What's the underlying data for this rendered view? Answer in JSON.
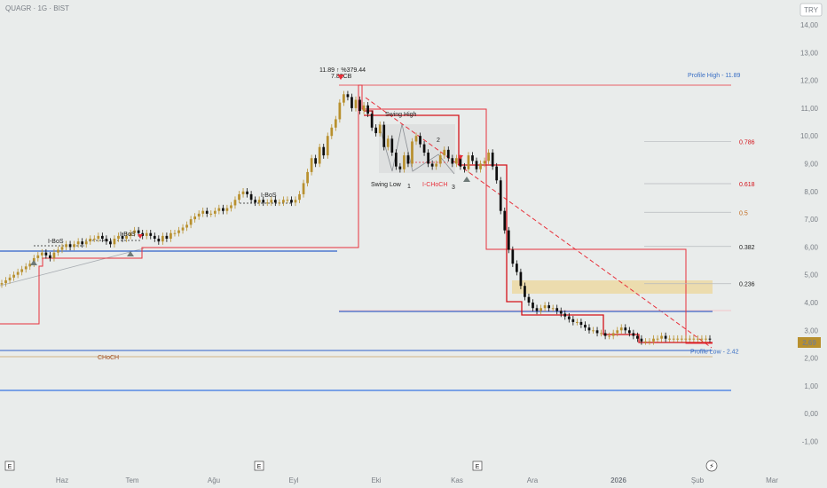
{
  "header": {
    "symbol_label": "QUAGR · 1G · BIST",
    "currency_badge": "TRY"
  },
  "price_badge": "2,69",
  "colors": {
    "background": "#e9eceb",
    "bull_candle": "#b8902e",
    "bear_candle": "#0d0d0d",
    "trend_red": "#e8313b",
    "fib_red": "#d4121a",
    "fib_orange": "#c2691a",
    "blue_level": "#2f61c9",
    "zone_fill": "#ecd9a3"
  },
  "chart_data": {
    "type": "candlestick",
    "y_axis": {
      "ticks": [
        "14,00",
        "13,00",
        "12,00",
        "11,00",
        "10,00",
        "9,00",
        "8,00",
        "7,00",
        "6,00",
        "5,00",
        "4,00",
        "3,00",
        "2,00",
        "1,00",
        "0,00",
        "-1,00"
      ],
      "values": [
        14,
        13,
        12,
        11,
        10,
        9,
        8,
        7,
        6,
        5,
        4,
        3,
        2,
        1,
        0,
        -1
      ],
      "range": [
        -1.4,
        14.4
      ]
    },
    "x_axis": {
      "labels": [
        "Haz",
        "Tem",
        "Ağu",
        "Eyl",
        "Eki",
        "Kas",
        "Ara",
        "2026",
        "Şub",
        "Mar"
      ],
      "bold": "2026"
    },
    "close_series": [
      4.7,
      4.8,
      4.9,
      5.0,
      5.1,
      5.2,
      5.3,
      5.4,
      5.6,
      5.7,
      5.8,
      5.7,
      5.6,
      5.8,
      5.9,
      6.0,
      6.1,
      6.0,
      6.1,
      6.2,
      6.1,
      6.2,
      6.3,
      6.3,
      6.4,
      6.3,
      6.2,
      6.1,
      6.3,
      6.4,
      6.3,
      6.4,
      6.5,
      6.6,
      6.5,
      6.4,
      6.5,
      6.4,
      6.3,
      6.2,
      6.4,
      6.3,
      6.5,
      6.5,
      6.6,
      6.7,
      6.8,
      7.0,
      7.1,
      7.2,
      7.3,
      7.2,
      7.2,
      7.3,
      7.4,
      7.3,
      7.4,
      7.5,
      7.7,
      7.9,
      8.0,
      7.9,
      7.7,
      7.6,
      7.7,
      7.6,
      7.6,
      7.7,
      7.6,
      7.6,
      7.7,
      7.7,
      7.6,
      7.7,
      7.9,
      8.3,
      8.7,
      9.2,
      9.0,
      9.6,
      9.3,
      10.0,
      10.3,
      10.6,
      11.2,
      11.5,
      11.4,
      11.0,
      11.3,
      10.9,
      11.1,
      10.8,
      10.3,
      10.1,
      10.4,
      9.6,
      9.9,
      9.4,
      8.9,
      8.8,
      9.3,
      9.0,
      9.8,
      10.0,
      9.7,
      9.4,
      9.0,
      8.9,
      9.0,
      9.3,
      9.5,
      9.2,
      9.0,
      9.2,
      8.9,
      8.8,
      9.3,
      9.1,
      8.8,
      9.0,
      9.1,
      9.4,
      8.9,
      8.4,
      7.3,
      6.6,
      5.9,
      5.4,
      5.1,
      4.6,
      4.2,
      4.0,
      3.8,
      3.7,
      3.8,
      3.9,
      3.8,
      3.8,
      3.7,
      3.6,
      3.5,
      3.4,
      3.3,
      3.3,
      3.2,
      3.1,
      3.0,
      3.0,
      2.9,
      2.9,
      2.8,
      2.8,
      2.9,
      3.0,
      3.1,
      3.0,
      2.9,
      2.8,
      2.7,
      2.6,
      2.6,
      2.6,
      2.7,
      2.7,
      2.8,
      2.7,
      2.7,
      2.7,
      2.7,
      2.7,
      2.7,
      2.7,
      2.7,
      2.7,
      2.7,
      2.7,
      2.69
    ],
    "fibonacci": [
      {
        "label": "Profile High - 11.89",
        "value": 11.89
      },
      {
        "label": "0.786",
        "value": 9.8
      },
      {
        "label": "0.618",
        "value": 8.28
      },
      {
        "label": "0.5",
        "value": 7.25
      },
      {
        "label": "0.382",
        "value": 6.02
      },
      {
        "label": "0.236",
        "value": 4.68
      },
      {
        "label": "Profile Low - 2.42",
        "value": 2.42
      }
    ],
    "annotations": [
      {
        "text": "11.89 ↑ %379.44"
      },
      {
        "text": "7.82CB"
      },
      {
        "text": "Swing High"
      },
      {
        "text": "Swing Low"
      },
      {
        "text": "1"
      },
      {
        "text": "2"
      },
      {
        "text": "3"
      },
      {
        "text": "I-CHoCH"
      },
      {
        "text": "I-BoS"
      },
      {
        "text": "I-BoS"
      },
      {
        "text": "I-BoS"
      },
      {
        "text": "CHoCH"
      }
    ]
  }
}
